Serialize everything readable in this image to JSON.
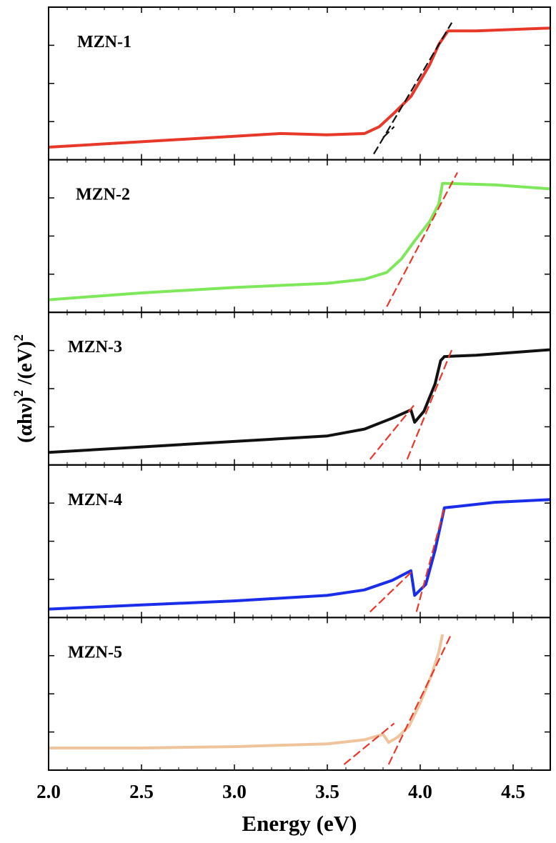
{
  "chart_data": {
    "type": "line",
    "xlabel": "Energy (eV)",
    "ylabel_base": "(αhν)",
    "ylabel_sup1": "2",
    "ylabel_mid": " /(eV)",
    "ylabel_sup2": "2",
    "xlim": [
      2.0,
      4.7
    ],
    "ylim": [
      0,
      1
    ],
    "grid": false,
    "x_ticks": [
      "2.0",
      "2.5",
      "3.0",
      "3.5",
      "4.0",
      "4.5"
    ],
    "x_tick_values": [
      2.0,
      2.5,
      3.0,
      3.5,
      4.0,
      4.5
    ],
    "panels": [
      {
        "name": "MZN-1",
        "color": "#e8382a",
        "fit_color": "#111111",
        "curve": [
          [
            2.0,
            0.05
          ],
          [
            2.5,
            0.09
          ],
          [
            3.0,
            0.13
          ],
          [
            3.25,
            0.15
          ],
          [
            3.5,
            0.14
          ],
          [
            3.7,
            0.15
          ],
          [
            3.78,
            0.2
          ],
          [
            3.86,
            0.3
          ],
          [
            3.95,
            0.42
          ],
          [
            4.05,
            0.65
          ],
          [
            4.1,
            0.8
          ],
          [
            4.13,
            0.86
          ],
          [
            4.15,
            0.9
          ],
          [
            4.3,
            0.9
          ],
          [
            4.5,
            0.91
          ],
          [
            4.7,
            0.92
          ]
        ],
        "fits": [
          [
            [
              3.75,
              0.0
            ],
            [
              4.17,
              0.96
            ]
          ],
          [
            [
              3.8,
              0.12
            ],
            [
              3.86,
              0.2
            ]
          ]
        ]
      },
      {
        "name": "MZN-2",
        "color": "#7ee85a",
        "fit_color": "#e8382a",
        "curve": [
          [
            2.0,
            0.05
          ],
          [
            2.5,
            0.1
          ],
          [
            3.0,
            0.14
          ],
          [
            3.5,
            0.17
          ],
          [
            3.7,
            0.2
          ],
          [
            3.82,
            0.25
          ],
          [
            3.9,
            0.35
          ],
          [
            3.97,
            0.48
          ],
          [
            4.05,
            0.62
          ],
          [
            4.1,
            0.75
          ],
          [
            4.12,
            0.9
          ],
          [
            4.15,
            0.9
          ],
          [
            4.4,
            0.89
          ],
          [
            4.7,
            0.86
          ]
        ],
        "fits": [
          [
            [
              3.82,
              0.0
            ],
            [
              4.2,
              0.98
            ]
          ]
        ]
      },
      {
        "name": "MZN-3",
        "color": "#111111",
        "fit_color": "#e8382a",
        "curve": [
          [
            2.0,
            0.05
          ],
          [
            2.5,
            0.09
          ],
          [
            3.0,
            0.13
          ],
          [
            3.5,
            0.17
          ],
          [
            3.7,
            0.22
          ],
          [
            3.85,
            0.3
          ],
          [
            3.95,
            0.36
          ],
          [
            3.97,
            0.27
          ],
          [
            4.02,
            0.35
          ],
          [
            4.08,
            0.55
          ],
          [
            4.11,
            0.72
          ],
          [
            4.13,
            0.75
          ],
          [
            4.3,
            0.76
          ],
          [
            4.5,
            0.78
          ],
          [
            4.7,
            0.8
          ]
        ],
        "fits": [
          [
            [
              3.73,
              0.0
            ],
            [
              3.97,
              0.4
            ]
          ],
          [
            [
              3.93,
              0.0
            ],
            [
              4.17,
              0.8
            ]
          ]
        ]
      },
      {
        "name": "MZN-4",
        "color": "#1a2de8",
        "fit_color": "#e8382a",
        "curve": [
          [
            2.0,
            0.02
          ],
          [
            2.5,
            0.05
          ],
          [
            3.0,
            0.08
          ],
          [
            3.5,
            0.12
          ],
          [
            3.7,
            0.16
          ],
          [
            3.85,
            0.23
          ],
          [
            3.95,
            0.3
          ],
          [
            3.97,
            0.12
          ],
          [
            4.03,
            0.2
          ],
          [
            4.08,
            0.45
          ],
          [
            4.13,
            0.76
          ],
          [
            4.2,
            0.77
          ],
          [
            4.4,
            0.8
          ],
          [
            4.7,
            0.82
          ]
        ],
        "fits": [
          [
            [
              3.73,
              0.0
            ],
            [
              3.96,
              0.3
            ]
          ],
          [
            [
              3.98,
              0.0
            ],
            [
              4.13,
              0.76
            ]
          ]
        ]
      },
      {
        "name": "MZN-5",
        "color": "#efc49c",
        "fit_color": "#e8382a",
        "curve": [
          [
            2.0,
            0.12
          ],
          [
            2.5,
            0.12
          ],
          [
            3.0,
            0.13
          ],
          [
            3.5,
            0.15
          ],
          [
            3.7,
            0.18
          ],
          [
            3.8,
            0.22
          ],
          [
            3.83,
            0.16
          ],
          [
            3.88,
            0.2
          ],
          [
            3.94,
            0.28
          ],
          [
            4.0,
            0.45
          ],
          [
            4.06,
            0.65
          ],
          [
            4.1,
            0.82
          ],
          [
            4.12,
            0.95
          ]
        ],
        "fits": [
          [
            [
              3.59,
              0.0
            ],
            [
              3.86,
              0.3
            ]
          ],
          [
            [
              3.83,
              0.0
            ],
            [
              4.17,
              0.96
            ]
          ]
        ]
      }
    ]
  }
}
